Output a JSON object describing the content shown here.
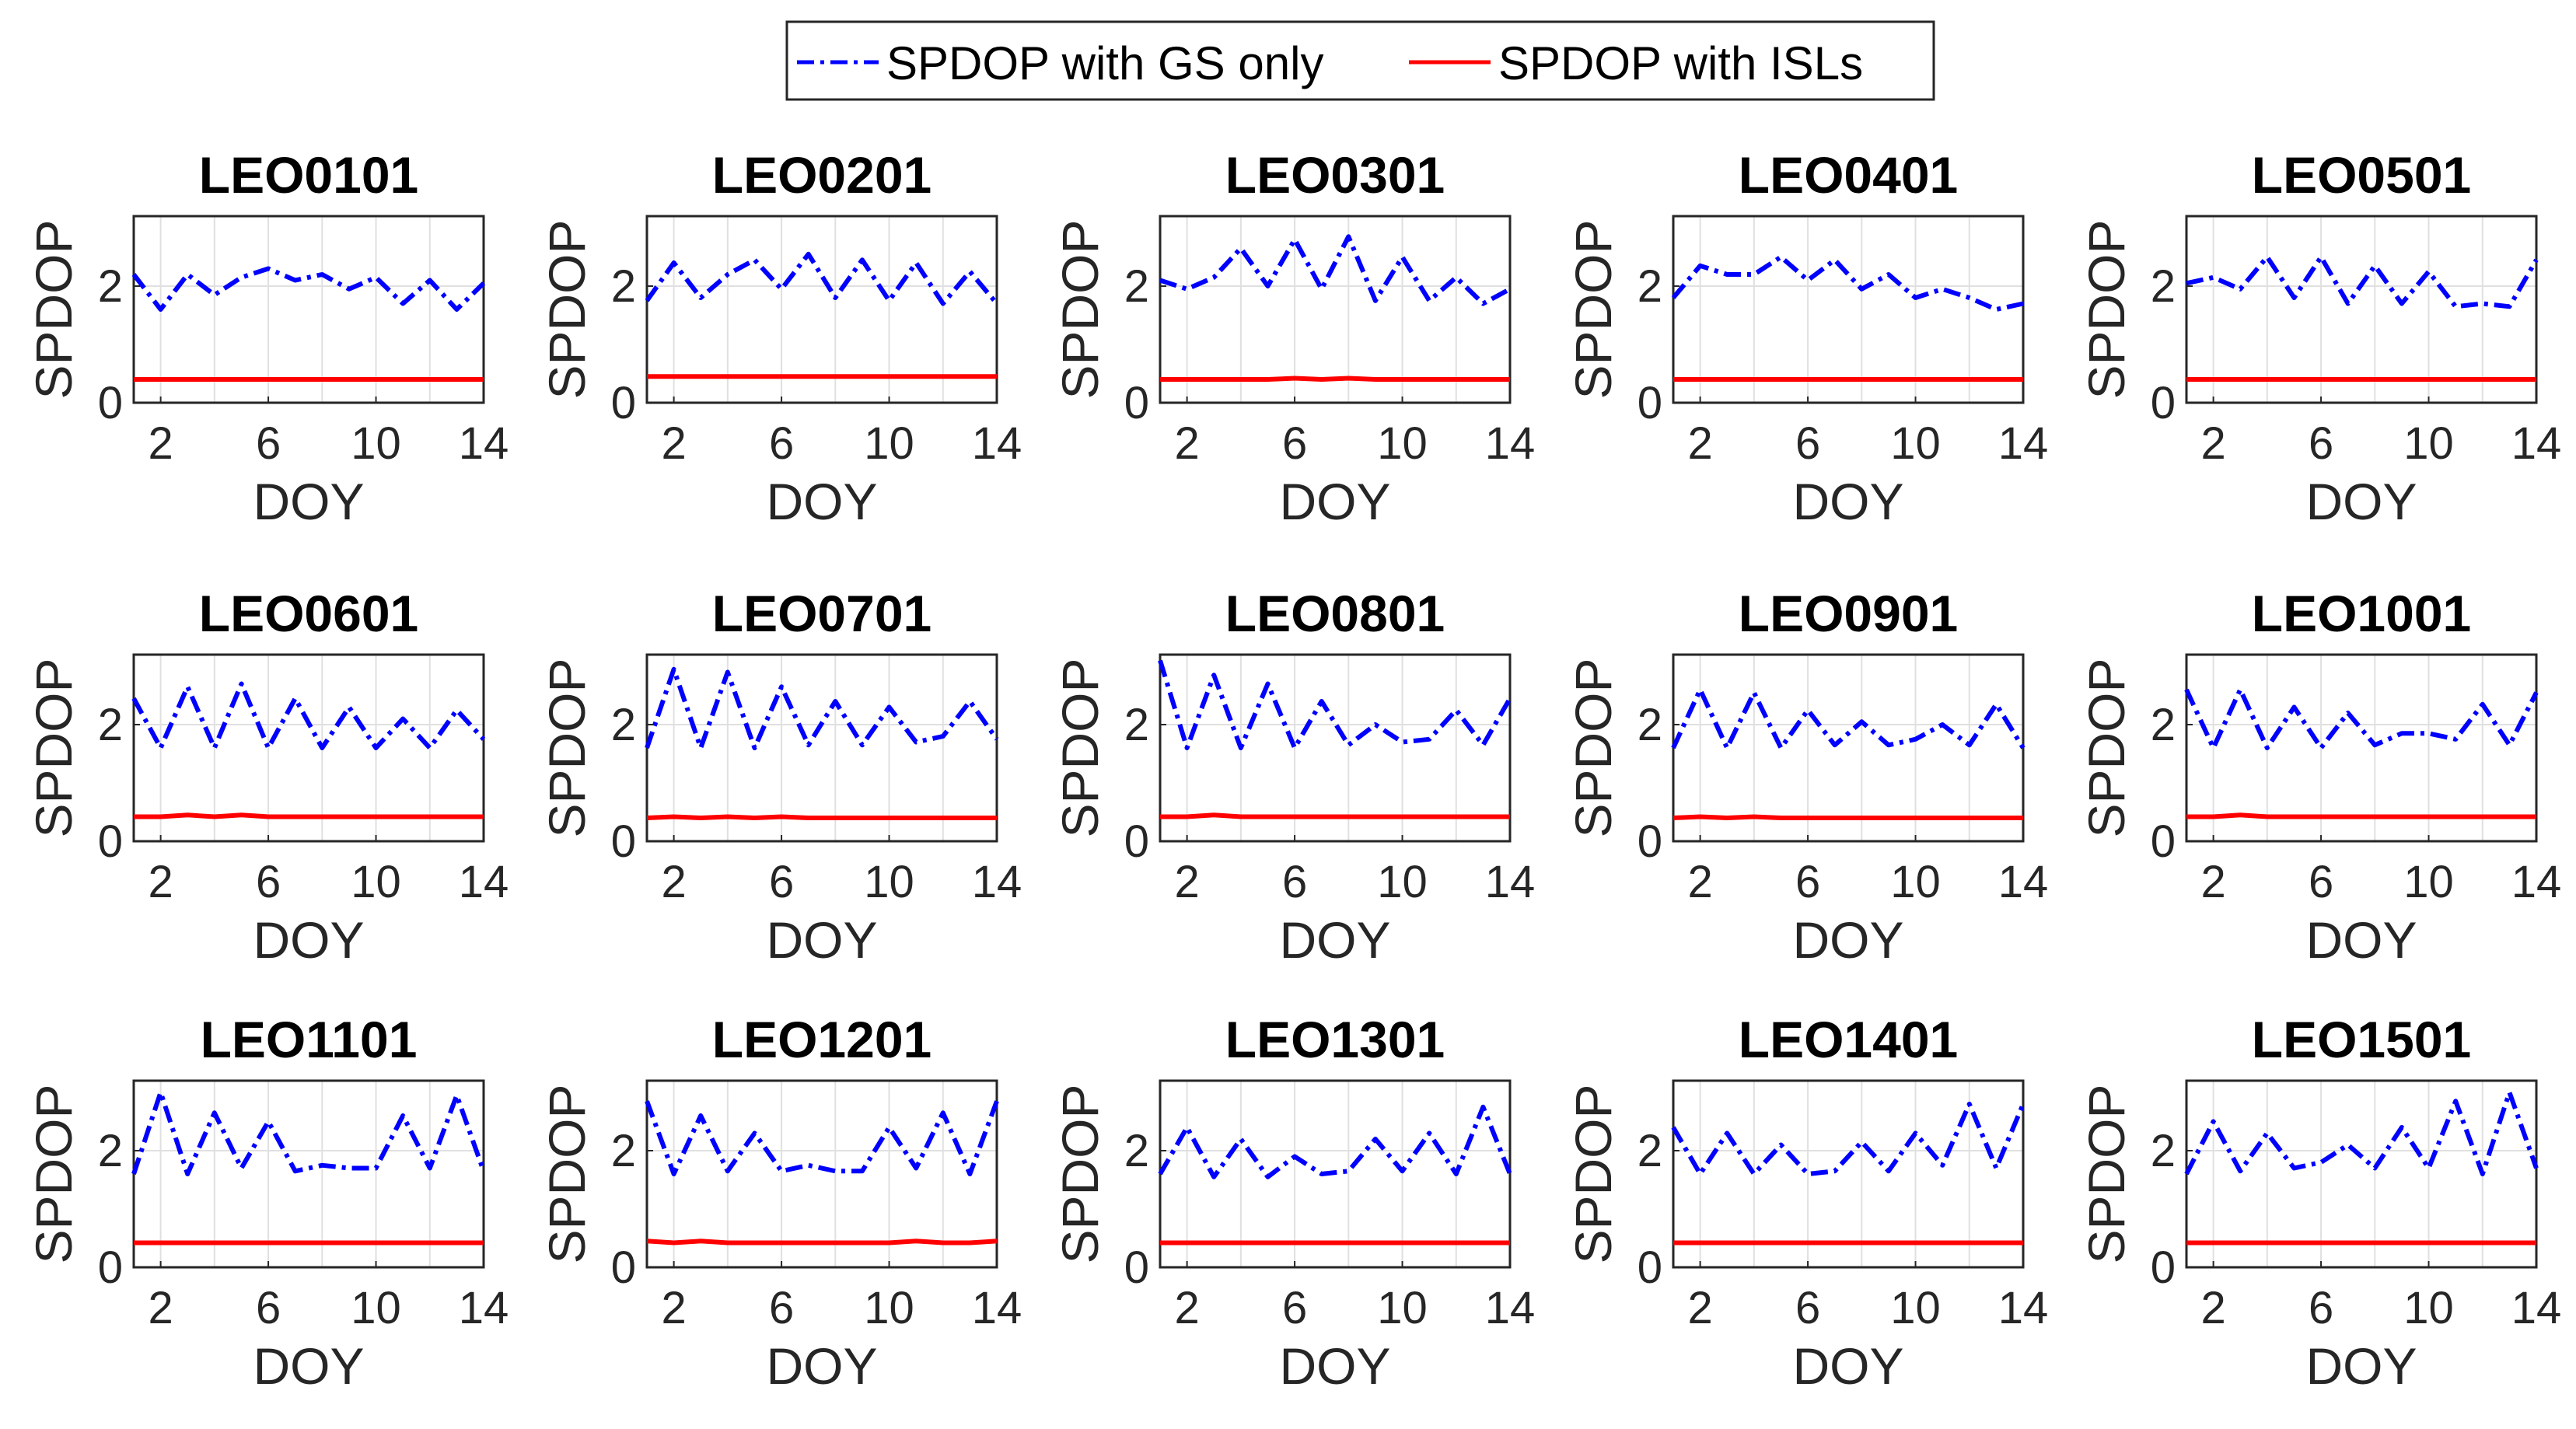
{
  "legend": {
    "items": [
      {
        "label": "SPDOP with GS only",
        "color": "#0000ff",
        "style": "dash-dot"
      },
      {
        "label": "SPDOP with ISLs",
        "color": "#ff0000",
        "style": "solid"
      }
    ]
  },
  "chart_data": [
    {
      "type": "line",
      "title": "LEO0101",
      "xlabel": "DOY",
      "ylabel": "SPDOP",
      "xlim": [
        1,
        14
      ],
      "ylim": [
        0,
        3.2
      ],
      "xticks": [
        "2",
        "6",
        "10",
        "14"
      ],
      "yticks": [
        "0",
        "2"
      ],
      "grid": true,
      "x": [
        1,
        2,
        3,
        4,
        5,
        6,
        7,
        8,
        9,
        10,
        11,
        12,
        13,
        14
      ],
      "series": [
        {
          "name": "SPDOP with GS only",
          "values": [
            2.2,
            1.6,
            2.2,
            1.85,
            2.15,
            2.3,
            2.1,
            2.2,
            1.95,
            2.15,
            1.7,
            2.1,
            1.6,
            2.05
          ]
        },
        {
          "name": "SPDOP with ISLs",
          "values": [
            0.4,
            0.4,
            0.4,
            0.4,
            0.4,
            0.4,
            0.4,
            0.4,
            0.4,
            0.4,
            0.4,
            0.4,
            0.4,
            0.4
          ]
        }
      ]
    },
    {
      "type": "line",
      "title": "LEO0201",
      "xlabel": "DOY",
      "ylabel": "SPDOP",
      "xlim": [
        1,
        14
      ],
      "ylim": [
        0,
        3.2
      ],
      "xticks": [
        "2",
        "6",
        "10",
        "14"
      ],
      "yticks": [
        "0",
        "2"
      ],
      "grid": true,
      "x": [
        1,
        2,
        3,
        4,
        5,
        6,
        7,
        8,
        9,
        10,
        11,
        12,
        13,
        14
      ],
      "series": [
        {
          "name": "SPDOP with GS only",
          "values": [
            1.75,
            2.4,
            1.8,
            2.2,
            2.45,
            1.95,
            2.55,
            1.8,
            2.45,
            1.75,
            2.4,
            1.7,
            2.25,
            1.7
          ]
        },
        {
          "name": "SPDOP with ISLs",
          "values": [
            0.45,
            0.45,
            0.45,
            0.45,
            0.45,
            0.45,
            0.45,
            0.45,
            0.45,
            0.45,
            0.45,
            0.45,
            0.45,
            0.45
          ]
        }
      ]
    },
    {
      "type": "line",
      "title": "LEO0301",
      "xlabel": "DOY",
      "ylabel": "SPDOP",
      "xlim": [
        1,
        14
      ],
      "ylim": [
        0,
        3.2
      ],
      "xticks": [
        "2",
        "6",
        "10",
        "14"
      ],
      "yticks": [
        "0",
        "2"
      ],
      "grid": true,
      "x": [
        1,
        2,
        3,
        4,
        5,
        6,
        7,
        8,
        9,
        10,
        11,
        12,
        13,
        14
      ],
      "series": [
        {
          "name": "SPDOP with GS only",
          "values": [
            2.1,
            1.95,
            2.15,
            2.65,
            2.0,
            2.8,
            1.95,
            2.85,
            1.75,
            2.5,
            1.75,
            2.15,
            1.7,
            1.95
          ]
        },
        {
          "name": "SPDOP with ISLs",
          "values": [
            0.4,
            0.4,
            0.4,
            0.4,
            0.4,
            0.42,
            0.4,
            0.42,
            0.4,
            0.4,
            0.4,
            0.4,
            0.4,
            0.4
          ]
        }
      ]
    },
    {
      "type": "line",
      "title": "LEO0401",
      "xlabel": "DOY",
      "ylabel": "SPDOP",
      "xlim": [
        1,
        14
      ],
      "ylim": [
        0,
        3.2
      ],
      "xticks": [
        "2",
        "6",
        "10",
        "14"
      ],
      "yticks": [
        "0",
        "2"
      ],
      "grid": true,
      "x": [
        1,
        2,
        3,
        4,
        5,
        6,
        7,
        8,
        9,
        10,
        11,
        12,
        13,
        14
      ],
      "series": [
        {
          "name": "SPDOP with GS only",
          "values": [
            1.8,
            2.35,
            2.2,
            2.2,
            2.5,
            2.1,
            2.45,
            1.95,
            2.2,
            1.8,
            1.95,
            1.8,
            1.6,
            1.7
          ]
        },
        {
          "name": "SPDOP with ISLs",
          "values": [
            0.4,
            0.4,
            0.4,
            0.4,
            0.4,
            0.4,
            0.4,
            0.4,
            0.4,
            0.4,
            0.4,
            0.4,
            0.4,
            0.4
          ]
        }
      ]
    },
    {
      "type": "line",
      "title": "LEO0501",
      "xlabel": "DOY",
      "ylabel": "SPDOP",
      "xlim": [
        1,
        14
      ],
      "ylim": [
        0,
        3.2
      ],
      "xticks": [
        "2",
        "6",
        "10",
        "14"
      ],
      "yticks": [
        "0",
        "2"
      ],
      "grid": true,
      "x": [
        1,
        2,
        3,
        4,
        5,
        6,
        7,
        8,
        9,
        10,
        11,
        12,
        13,
        14
      ],
      "series": [
        {
          "name": "SPDOP with GS only",
          "values": [
            2.05,
            2.15,
            1.95,
            2.5,
            1.8,
            2.5,
            1.7,
            2.35,
            1.7,
            2.25,
            1.65,
            1.7,
            1.65,
            2.45
          ]
        },
        {
          "name": "SPDOP with ISLs",
          "values": [
            0.4,
            0.4,
            0.4,
            0.4,
            0.4,
            0.4,
            0.4,
            0.4,
            0.4,
            0.4,
            0.4,
            0.4,
            0.4,
            0.4
          ]
        }
      ]
    },
    {
      "type": "line",
      "title": "LEO0601",
      "xlabel": "DOY",
      "ylabel": "SPDOP",
      "xlim": [
        1,
        14
      ],
      "ylim": [
        0,
        3.2
      ],
      "xticks": [
        "2",
        "6",
        "10",
        "14"
      ],
      "yticks": [
        "0",
        "2"
      ],
      "grid": true,
      "x": [
        1,
        2,
        3,
        4,
        5,
        6,
        7,
        8,
        9,
        10,
        11,
        12,
        13,
        14
      ],
      "series": [
        {
          "name": "SPDOP with GS only",
          "values": [
            2.45,
            1.6,
            2.65,
            1.6,
            2.7,
            1.6,
            2.45,
            1.6,
            2.3,
            1.6,
            2.1,
            1.6,
            2.25,
            1.75
          ]
        },
        {
          "name": "SPDOP with ISLs",
          "values": [
            0.42,
            0.42,
            0.45,
            0.42,
            0.45,
            0.42,
            0.42,
            0.42,
            0.42,
            0.42,
            0.42,
            0.42,
            0.42,
            0.42
          ]
        }
      ]
    },
    {
      "type": "line",
      "title": "LEO0701",
      "xlabel": "DOY",
      "ylabel": "SPDOP",
      "xlim": [
        1,
        14
      ],
      "ylim": [
        0,
        3.2
      ],
      "xticks": [
        "2",
        "6",
        "10",
        "14"
      ],
      "yticks": [
        "0",
        "2"
      ],
      "grid": true,
      "x": [
        1,
        2,
        3,
        4,
        5,
        6,
        7,
        8,
        9,
        10,
        11,
        12,
        13,
        14
      ],
      "series": [
        {
          "name": "SPDOP with GS only",
          "values": [
            1.6,
            2.95,
            1.6,
            2.9,
            1.6,
            2.65,
            1.65,
            2.4,
            1.65,
            2.3,
            1.7,
            1.8,
            2.4,
            1.75
          ]
        },
        {
          "name": "SPDOP with ISLs",
          "values": [
            0.4,
            0.42,
            0.4,
            0.42,
            0.4,
            0.42,
            0.4,
            0.4,
            0.4,
            0.4,
            0.4,
            0.4,
            0.4,
            0.4
          ]
        }
      ]
    },
    {
      "type": "line",
      "title": "LEO0801",
      "xlabel": "DOY",
      "ylabel": "SPDOP",
      "xlim": [
        1,
        14
      ],
      "ylim": [
        0,
        3.2
      ],
      "xticks": [
        "2",
        "6",
        "10",
        "14"
      ],
      "yticks": [
        "0",
        "2"
      ],
      "grid": true,
      "x": [
        1,
        2,
        3,
        4,
        5,
        6,
        7,
        8,
        9,
        10,
        11,
        12,
        13,
        14
      ],
      "series": [
        {
          "name": "SPDOP with GS only",
          "values": [
            3.1,
            1.6,
            2.85,
            1.6,
            2.7,
            1.6,
            2.4,
            1.65,
            2.0,
            1.7,
            1.75,
            2.25,
            1.65,
            2.45
          ]
        },
        {
          "name": "SPDOP with ISLs",
          "values": [
            0.42,
            0.42,
            0.45,
            0.42,
            0.42,
            0.42,
            0.42,
            0.42,
            0.42,
            0.42,
            0.42,
            0.42,
            0.42,
            0.42
          ]
        }
      ]
    },
    {
      "type": "line",
      "title": "LEO0901",
      "xlabel": "DOY",
      "ylabel": "SPDOP",
      "xlim": [
        1,
        14
      ],
      "ylim": [
        0,
        3.2
      ],
      "xticks": [
        "2",
        "6",
        "10",
        "14"
      ],
      "yticks": [
        "0",
        "2"
      ],
      "grid": true,
      "x": [
        1,
        2,
        3,
        4,
        5,
        6,
        7,
        8,
        9,
        10,
        11,
        12,
        13,
        14
      ],
      "series": [
        {
          "name": "SPDOP with GS only",
          "values": [
            1.6,
            2.6,
            1.6,
            2.55,
            1.6,
            2.25,
            1.65,
            2.05,
            1.65,
            1.75,
            2.0,
            1.65,
            2.35,
            1.6
          ]
        },
        {
          "name": "SPDOP with ISLs",
          "values": [
            0.4,
            0.42,
            0.4,
            0.42,
            0.4,
            0.4,
            0.4,
            0.4,
            0.4,
            0.4,
            0.4,
            0.4,
            0.4,
            0.4
          ]
        }
      ]
    },
    {
      "type": "line",
      "title": "LEO1001",
      "xlabel": "DOY",
      "ylabel": "SPDOP",
      "xlim": [
        1,
        14
      ],
      "ylim": [
        0,
        3.2
      ],
      "xticks": [
        "2",
        "6",
        "10",
        "14"
      ],
      "yticks": [
        "0",
        "2"
      ],
      "grid": true,
      "x": [
        1,
        2,
        3,
        4,
        5,
        6,
        7,
        8,
        9,
        10,
        11,
        12,
        13,
        14
      ],
      "series": [
        {
          "name": "SPDOP with GS only",
          "values": [
            2.6,
            1.6,
            2.6,
            1.6,
            2.3,
            1.6,
            2.2,
            1.65,
            1.85,
            1.85,
            1.75,
            2.35,
            1.65,
            2.55
          ]
        },
        {
          "name": "SPDOP with ISLs",
          "values": [
            0.42,
            0.42,
            0.45,
            0.42,
            0.42,
            0.42,
            0.42,
            0.42,
            0.42,
            0.42,
            0.42,
            0.42,
            0.42,
            0.42
          ]
        }
      ]
    },
    {
      "type": "line",
      "title": "LEO1101",
      "xlabel": "DOY",
      "ylabel": "SPDOP",
      "xlim": [
        1,
        14
      ],
      "ylim": [
        0,
        3.2
      ],
      "xticks": [
        "2",
        "6",
        "10",
        "14"
      ],
      "yticks": [
        "0",
        "2"
      ],
      "grid": true,
      "x": [
        1,
        2,
        3,
        4,
        5,
        6,
        7,
        8,
        9,
        10,
        11,
        12,
        13,
        14
      ],
      "series": [
        {
          "name": "SPDOP with GS only",
          "values": [
            1.6,
            3.0,
            1.6,
            2.65,
            1.7,
            2.5,
            1.65,
            1.75,
            1.7,
            1.7,
            2.6,
            1.7,
            2.95,
            1.65
          ]
        },
        {
          "name": "SPDOP with ISLs",
          "values": [
            0.42,
            0.42,
            0.42,
            0.42,
            0.42,
            0.42,
            0.42,
            0.42,
            0.42,
            0.42,
            0.42,
            0.42,
            0.42,
            0.42
          ]
        }
      ]
    },
    {
      "type": "line",
      "title": "LEO1201",
      "xlabel": "DOY",
      "ylabel": "SPDOP",
      "xlim": [
        1,
        14
      ],
      "ylim": [
        0,
        3.2
      ],
      "xticks": [
        "2",
        "6",
        "10",
        "14"
      ],
      "yticks": [
        "0",
        "2"
      ],
      "grid": true,
      "x": [
        1,
        2,
        3,
        4,
        5,
        6,
        7,
        8,
        9,
        10,
        11,
        12,
        13,
        14
      ],
      "series": [
        {
          "name": "SPDOP with GS only",
          "values": [
            2.85,
            1.6,
            2.6,
            1.65,
            2.3,
            1.65,
            1.75,
            1.65,
            1.65,
            2.4,
            1.7,
            2.65,
            1.6,
            2.85
          ]
        },
        {
          "name": "SPDOP with ISLs",
          "values": [
            0.45,
            0.42,
            0.45,
            0.42,
            0.42,
            0.42,
            0.42,
            0.42,
            0.42,
            0.42,
            0.45,
            0.42,
            0.42,
            0.45
          ]
        }
      ]
    },
    {
      "type": "line",
      "title": "LEO1301",
      "xlabel": "DOY",
      "ylabel": "SPDOP",
      "xlim": [
        1,
        14
      ],
      "ylim": [
        0,
        3.2
      ],
      "xticks": [
        "2",
        "6",
        "10",
        "14"
      ],
      "yticks": [
        "0",
        "2"
      ],
      "grid": true,
      "x": [
        1,
        2,
        3,
        4,
        5,
        6,
        7,
        8,
        9,
        10,
        11,
        12,
        13,
        14
      ],
      "series": [
        {
          "name": "SPDOP with GS only",
          "values": [
            1.6,
            2.4,
            1.55,
            2.2,
            1.55,
            1.9,
            1.6,
            1.65,
            2.2,
            1.65,
            2.3,
            1.6,
            2.75,
            1.6
          ]
        },
        {
          "name": "SPDOP with ISLs",
          "values": [
            0.42,
            0.42,
            0.42,
            0.42,
            0.42,
            0.42,
            0.42,
            0.42,
            0.42,
            0.42,
            0.42,
            0.42,
            0.42,
            0.42
          ]
        }
      ]
    },
    {
      "type": "line",
      "title": "LEO1401",
      "xlabel": "DOY",
      "ylabel": "SPDOP",
      "xlim": [
        1,
        14
      ],
      "ylim": [
        0,
        3.2
      ],
      "xticks": [
        "2",
        "6",
        "10",
        "14"
      ],
      "yticks": [
        "0",
        "2"
      ],
      "grid": true,
      "x": [
        1,
        2,
        3,
        4,
        5,
        6,
        7,
        8,
        9,
        10,
        11,
        12,
        13,
        14
      ],
      "series": [
        {
          "name": "SPDOP with GS only",
          "values": [
            2.4,
            1.6,
            2.3,
            1.6,
            2.1,
            1.6,
            1.65,
            2.15,
            1.65,
            2.3,
            1.75,
            2.8,
            1.7,
            2.8
          ]
        },
        {
          "name": "SPDOP with ISLs",
          "values": [
            0.42,
            0.42,
            0.42,
            0.42,
            0.42,
            0.42,
            0.42,
            0.42,
            0.42,
            0.42,
            0.42,
            0.42,
            0.42,
            0.42
          ]
        }
      ]
    },
    {
      "type": "line",
      "title": "LEO1501",
      "xlabel": "DOY",
      "ylabel": "SPDOP",
      "xlim": [
        1,
        14
      ],
      "ylim": [
        0,
        3.2
      ],
      "xticks": [
        "2",
        "6",
        "10",
        "14"
      ],
      "yticks": [
        "0",
        "2"
      ],
      "grid": true,
      "x": [
        1,
        2,
        3,
        4,
        5,
        6,
        7,
        8,
        9,
        10,
        11,
        12,
        13,
        14
      ],
      "series": [
        {
          "name": "SPDOP with GS only",
          "values": [
            1.6,
            2.5,
            1.65,
            2.3,
            1.7,
            1.8,
            2.1,
            1.7,
            2.4,
            1.7,
            2.85,
            1.6,
            3.0,
            1.7
          ]
        },
        {
          "name": "SPDOP with ISLs",
          "values": [
            0.42,
            0.42,
            0.42,
            0.42,
            0.42,
            0.42,
            0.42,
            0.42,
            0.42,
            0.42,
            0.42,
            0.42,
            0.42,
            0.42
          ]
        }
      ]
    }
  ]
}
